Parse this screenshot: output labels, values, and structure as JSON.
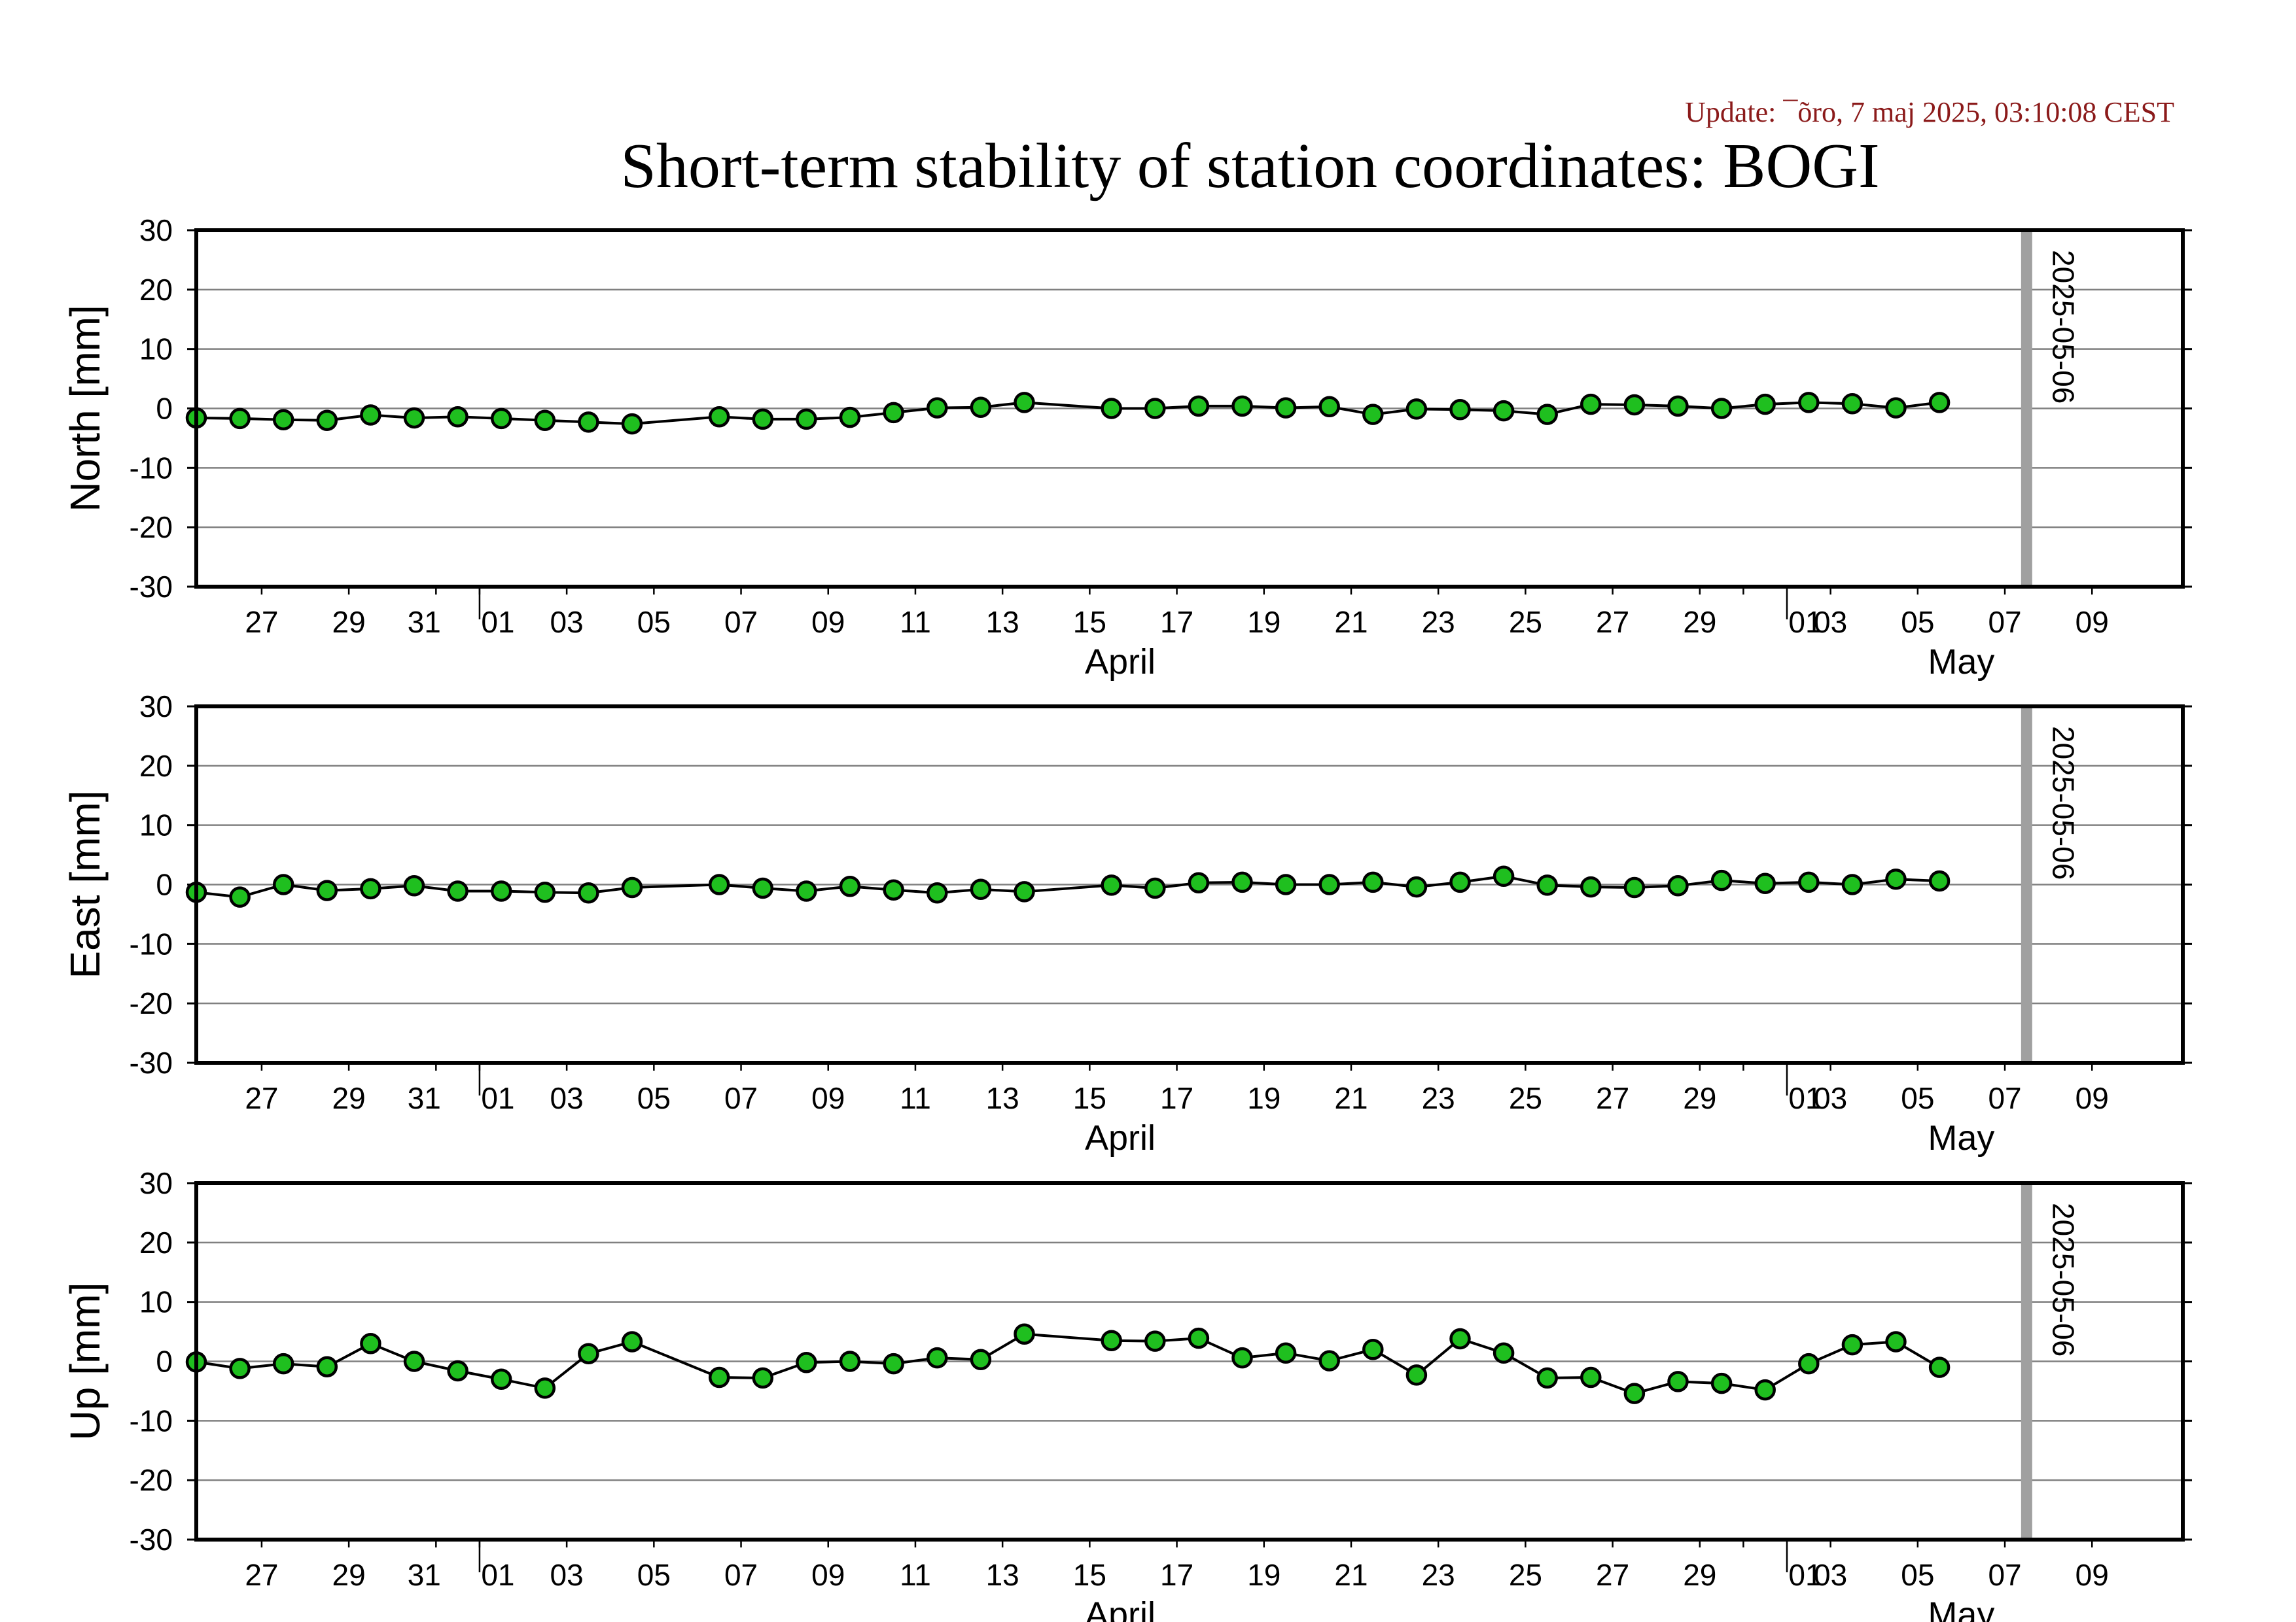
{
  "header": {
    "update_text": "Update: ¯õro, 7 maj 2025, 03:10:08 CEST",
    "title": "Short-term stability of station coordinates: BOGI"
  },
  "colors": {
    "marker_fill": "#1fbf1f",
    "marker_stroke": "#000000",
    "line": "#000000",
    "grid": "#808080",
    "reference_line": "#a0a0a0",
    "update_text": "#8b1a1a"
  },
  "chart_data": [
    {
      "type": "line",
      "ylabel": "North [mm]",
      "ylim": [
        -30,
        30
      ],
      "yticks": [
        30,
        20,
        10,
        0,
        -10,
        -20,
        -30
      ],
      "grid": true,
      "xlim": [
        "2025-03-25T12:00",
        "2025-05-10T02:00"
      ],
      "xtick_labels": [
        "27",
        "29",
        "31",
        "01",
        "03",
        "05",
        "07",
        "09",
        "11",
        "13",
        "15",
        "17",
        "19",
        "21",
        "23",
        "25",
        "27",
        "29",
        "01",
        "03",
        "05",
        "07",
        "09"
      ],
      "month_labels": [
        "April",
        "May"
      ],
      "reference_line": {
        "date": "2025-05-06",
        "label": "2025-05-06"
      },
      "series": [
        {
          "x": [
            "2025-03-25T12:00",
            "2025-03-26T12:00",
            "2025-03-27T12:00",
            "2025-03-28T12:00",
            "2025-03-29T12:00",
            "2025-03-30T12:00",
            "2025-03-31T12:00",
            "2025-04-01T12:00",
            "2025-04-02T12:00",
            "2025-04-03T12:00",
            "2025-04-04T12:00",
            "2025-04-06T12:00",
            "2025-04-07T12:00",
            "2025-04-08T12:00",
            "2025-04-09T12:00",
            "2025-04-10T12:00",
            "2025-04-11T12:00",
            "2025-04-12T12:00",
            "2025-04-13T12:00",
            "2025-04-15T12:00",
            "2025-04-16T12:00",
            "2025-04-17T12:00",
            "2025-04-18T12:00",
            "2025-04-19T12:00",
            "2025-04-20T12:00",
            "2025-04-21T12:00",
            "2025-04-22T12:00",
            "2025-04-23T12:00",
            "2025-04-24T12:00",
            "2025-04-25T12:00",
            "2025-04-26T12:00",
            "2025-04-27T12:00",
            "2025-04-28T12:00",
            "2025-04-29T12:00",
            "2025-04-30T12:00",
            "2025-05-01T12:00",
            "2025-05-02T12:00",
            "2025-05-03T12:00",
            "2025-05-04T12:00"
          ],
          "values": [
            -1.6,
            -1.7,
            -1.9,
            -2.0,
            -1.1,
            -1.6,
            -1.4,
            -1.7,
            -2.0,
            -2.3,
            -2.6,
            -1.4,
            -1.8,
            -1.8,
            -1.5,
            -0.7,
            0.1,
            0.2,
            1.0,
            0.0,
            0.0,
            0.4,
            0.4,
            0.1,
            0.3,
            -1.0,
            -0.1,
            -0.2,
            -0.4,
            -1.0,
            0.7,
            0.6,
            0.4,
            0.0,
            0.7,
            1.0,
            0.8,
            0.1,
            1.0
          ]
        }
      ]
    },
    {
      "type": "line",
      "ylabel": "East [mm]",
      "ylim": [
        -30,
        30
      ],
      "yticks": [
        30,
        20,
        10,
        0,
        -10,
        -20,
        -30
      ],
      "grid": true,
      "xlim": [
        "2025-03-25T12:00",
        "2025-05-10T02:00"
      ],
      "xtick_labels": [
        "27",
        "29",
        "31",
        "01",
        "03",
        "05",
        "07",
        "09",
        "11",
        "13",
        "15",
        "17",
        "19",
        "21",
        "23",
        "25",
        "27",
        "29",
        "01",
        "03",
        "05",
        "07",
        "09"
      ],
      "month_labels": [
        "April",
        "May"
      ],
      "reference_line": {
        "date": "2025-05-06",
        "label": "2025-05-06"
      },
      "series": [
        {
          "x": [
            "2025-03-25T12:00",
            "2025-03-26T12:00",
            "2025-03-27T12:00",
            "2025-03-28T12:00",
            "2025-03-29T12:00",
            "2025-03-30T12:00",
            "2025-03-31T12:00",
            "2025-04-01T12:00",
            "2025-04-02T12:00",
            "2025-04-03T12:00",
            "2025-04-04T12:00",
            "2025-04-06T12:00",
            "2025-04-07T12:00",
            "2025-04-08T12:00",
            "2025-04-09T12:00",
            "2025-04-10T12:00",
            "2025-04-11T12:00",
            "2025-04-12T12:00",
            "2025-04-13T12:00",
            "2025-04-15T12:00",
            "2025-04-16T12:00",
            "2025-04-17T12:00",
            "2025-04-18T12:00",
            "2025-04-19T12:00",
            "2025-04-20T12:00",
            "2025-04-21T12:00",
            "2025-04-22T12:00",
            "2025-04-23T12:00",
            "2025-04-24T12:00",
            "2025-04-25T12:00",
            "2025-04-26T12:00",
            "2025-04-27T12:00",
            "2025-04-28T12:00",
            "2025-04-29T12:00",
            "2025-04-30T12:00",
            "2025-05-01T12:00",
            "2025-05-02T12:00",
            "2025-05-03T12:00",
            "2025-05-04T12:00"
          ],
          "values": [
            -1.3,
            -2.1,
            0.0,
            -1.0,
            -0.7,
            -0.2,
            -1.1,
            -1.1,
            -1.3,
            -1.4,
            -0.5,
            0.0,
            -0.6,
            -1.1,
            -0.3,
            -0.9,
            -1.4,
            -0.8,
            -1.2,
            -0.1,
            -0.6,
            0.3,
            0.4,
            0.0,
            0.0,
            0.4,
            -0.4,
            0.4,
            1.4,
            -0.1,
            -0.4,
            -0.5,
            -0.2,
            0.7,
            0.2,
            0.4,
            0.0,
            0.9,
            0.6
          ]
        }
      ]
    },
    {
      "type": "line",
      "ylabel": "Up [mm]",
      "ylim": [
        -30,
        30
      ],
      "yticks": [
        30,
        20,
        10,
        0,
        -10,
        -20,
        -30
      ],
      "grid": true,
      "xlim": [
        "2025-03-25T12:00",
        "2025-05-10T02:00"
      ],
      "xtick_labels": [
        "27",
        "29",
        "31",
        "01",
        "03",
        "05",
        "07",
        "09",
        "11",
        "13",
        "15",
        "17",
        "19",
        "21",
        "23",
        "25",
        "27",
        "29",
        "01",
        "03",
        "05",
        "07",
        "09"
      ],
      "month_labels": [
        "April",
        "May"
      ],
      "reference_line": {
        "date": "2025-05-06",
        "label": "2025-05-06"
      },
      "series": [
        {
          "x": [
            "2025-03-25T12:00",
            "2025-03-26T12:00",
            "2025-03-27T12:00",
            "2025-03-28T12:00",
            "2025-03-29T12:00",
            "2025-03-30T12:00",
            "2025-03-31T12:00",
            "2025-04-01T12:00",
            "2025-04-02T12:00",
            "2025-04-03T12:00",
            "2025-04-04T12:00",
            "2025-04-06T12:00",
            "2025-04-07T12:00",
            "2025-04-08T12:00",
            "2025-04-09T12:00",
            "2025-04-10T12:00",
            "2025-04-11T12:00",
            "2025-04-12T12:00",
            "2025-04-13T12:00",
            "2025-04-15T12:00",
            "2025-04-16T12:00",
            "2025-04-17T12:00",
            "2025-04-18T12:00",
            "2025-04-19T12:00",
            "2025-04-20T12:00",
            "2025-04-21T12:00",
            "2025-04-22T12:00",
            "2025-04-23T12:00",
            "2025-04-24T12:00",
            "2025-04-25T12:00",
            "2025-04-26T12:00",
            "2025-04-27T12:00",
            "2025-04-28T12:00",
            "2025-04-29T12:00",
            "2025-04-30T12:00",
            "2025-05-01T12:00",
            "2025-05-02T12:00",
            "2025-05-03T12:00",
            "2025-05-04T12:00"
          ],
          "values": [
            -0.1,
            -1.2,
            -0.4,
            -0.9,
            3.0,
            0.0,
            -1.6,
            -3.0,
            -4.5,
            1.3,
            3.3,
            -2.7,
            -2.8,
            -0.2,
            0.0,
            -0.4,
            0.6,
            0.3,
            4.6,
            3.5,
            3.4,
            3.9,
            0.6,
            1.4,
            0.1,
            2.0,
            -2.3,
            3.8,
            1.4,
            -2.8,
            -2.7,
            -5.4,
            -3.4,
            -3.7,
            -4.8,
            -0.4,
            2.8,
            3.3,
            -1.0
          ]
        }
      ]
    }
  ]
}
